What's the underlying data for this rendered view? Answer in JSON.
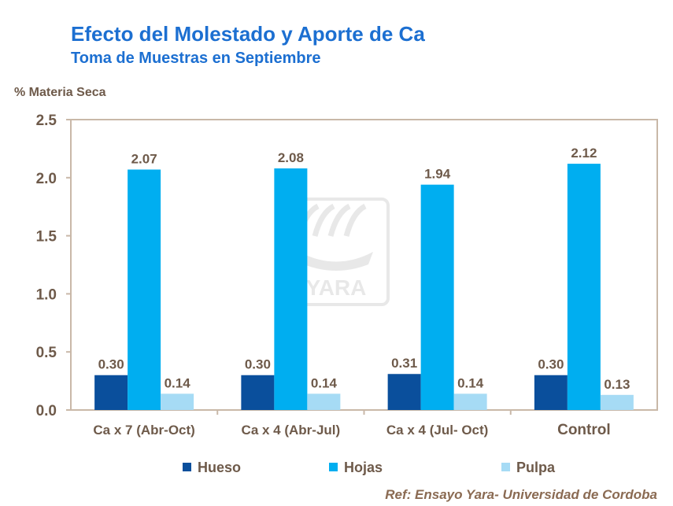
{
  "title": "Efecto del Molestado y Aporte de Ca",
  "subtitle": "Toma de Muestras en Septiembre",
  "reference": "Ref: Ensayo Yara- Universidad de Cordoba",
  "watermark": {
    "text": "YARA"
  },
  "colors": {
    "hueso": "#0a4f9c",
    "hojas": "#00aef0",
    "pulpa": "#a6dbf5",
    "axis_text": "#6e5a4a",
    "frame": "#c9b8a8",
    "title": "#1c6fd1"
  },
  "chart_data": {
    "type": "bar",
    "title": "Efecto del Molestado y Aporte de Ca",
    "subtitle": "Toma de Muestras en Septiembre",
    "ylabel": "% Materia Seca",
    "xlabel": "",
    "ylim": [
      0,
      2.5
    ],
    "yticks": [
      "0.0",
      "0.5",
      "1.0",
      "1.5",
      "2.0",
      "2.5"
    ],
    "ytick_values": [
      0,
      0.5,
      1.0,
      1.5,
      2.0,
      2.5
    ],
    "grid": false,
    "legend_position": "bottom",
    "categories": [
      "Ca x 7 (Abr-Oct)",
      "Ca x 4 (Abr-Jul)",
      "Ca x 4 (Jul- Oct)",
      "Control"
    ],
    "series": [
      {
        "name": "Hueso",
        "values": [
          0.3,
          0.3,
          0.31,
          0.3
        ],
        "labels": [
          "0.30",
          "0.30",
          "0.31",
          "0.30"
        ]
      },
      {
        "name": "Hojas",
        "values": [
          2.07,
          2.08,
          1.94,
          2.12
        ],
        "labels": [
          "2.07",
          "2.08",
          "1.94",
          "2.12"
        ]
      },
      {
        "name": "Pulpa",
        "values": [
          0.14,
          0.14,
          0.14,
          0.13
        ],
        "labels": [
          "0.14",
          "0.14",
          "0.14",
          "0.13"
        ]
      }
    ]
  }
}
